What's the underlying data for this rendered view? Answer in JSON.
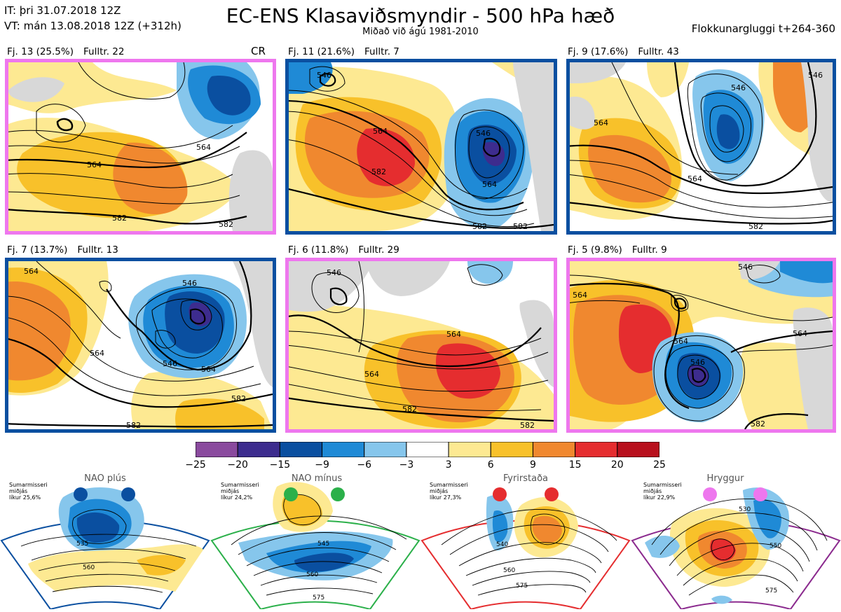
{
  "header": {
    "it_line": "IT: þri 31.07.2018 12Z",
    "vt_line": "VT: mán 13.08.2018 12Z  (+312h)",
    "title": "EC-ENS Klasaviðsmyndir - 500 hPa hæð",
    "subtitle": "Miðað við ágú 1981-2010",
    "window": "Flokkunargluggi t+264-360"
  },
  "panels": [
    {
      "label": "Fj. 13 (25.5%)",
      "count": "Fulltr. 22",
      "tag": "CR",
      "border": "#ee77ee",
      "contour_labels": [
        "564",
        "564",
        "582",
        "582"
      ]
    },
    {
      "label": "Fj. 11 (21.6%)",
      "count": "Fulltr. 7",
      "tag": "",
      "border": "#0a4fa0",
      "contour_labels": [
        "546",
        "564",
        "582",
        "546",
        "564",
        "582",
        "582"
      ]
    },
    {
      "label": "Fj. 9 (17.6%)",
      "count": "Fulltr. 43",
      "tag": "",
      "border": "#0a4fa0",
      "contour_labels": [
        "564",
        "546",
        "564",
        "582",
        "546"
      ]
    },
    {
      "label": "Fj. 7 (13.7%)",
      "count": "Fulltr. 13",
      "tag": "",
      "border": "#0a4fa0",
      "contour_labels": [
        "564",
        "546",
        "564",
        "546",
        "564",
        "582",
        "582"
      ]
    },
    {
      "label": "Fj. 6 (11.8%)",
      "count": "Fulltr. 29",
      "tag": "",
      "border": "#ee77ee",
      "contour_labels": [
        "546",
        "564",
        "564",
        "582",
        "582"
      ]
    },
    {
      "label": "Fj. 5 (9.8%)",
      "count": "Fulltr. 9",
      "tag": "",
      "border": "#ee77ee",
      "contour_labels": [
        "564",
        "546",
        "564",
        "546",
        "564",
        "582"
      ]
    }
  ],
  "colorbar": {
    "ticks": [
      "−25",
      "−20",
      "−15",
      "−9",
      "−6",
      "−3",
      "3",
      "6",
      "9",
      "15",
      "20",
      "25"
    ],
    "colors": [
      "#8a4a9e",
      "#3d2c8e",
      "#0a4fa0",
      "#1f8ad6",
      "#86c6ec",
      "#ffffff",
      "#fde992",
      "#f8c12a",
      "#f0882f",
      "#e52d2f",
      "#b8101d"
    ]
  },
  "climate_regimes": [
    {
      "title": "NAO plús",
      "season": "Sumarmisseri",
      "status": "miðjás",
      "prob": "líkur 25,6%",
      "dot_color": "#0a4fa0",
      "frame": "#0a4fa0",
      "contour_labels": [
        "535",
        "560"
      ]
    },
    {
      "title": "NAO mínus",
      "season": "Sumarmisseri",
      "status": "miðjás",
      "prob": "líkur 24,2%",
      "dot_color": "#2bb04a",
      "frame": "#2bb04a",
      "contour_labels": [
        "545",
        "560",
        "575"
      ]
    },
    {
      "title": "Fyrirstaða",
      "season": "Sumarmisseri",
      "status": "miðjás",
      "prob": "líkur 27,3%",
      "dot_color": "#e52d2f",
      "frame": "#e52d2f",
      "contour_labels": [
        "540",
        "560",
        "575"
      ]
    },
    {
      "title": "Hryggur",
      "season": "Sumarmisseri",
      "status": "miðjás",
      "prob": "líkur 22,9%",
      "dot_color": "#ee77ee",
      "frame": "#8b2a8e",
      "contour_labels": [
        "530",
        "550",
        "575"
      ]
    }
  ]
}
